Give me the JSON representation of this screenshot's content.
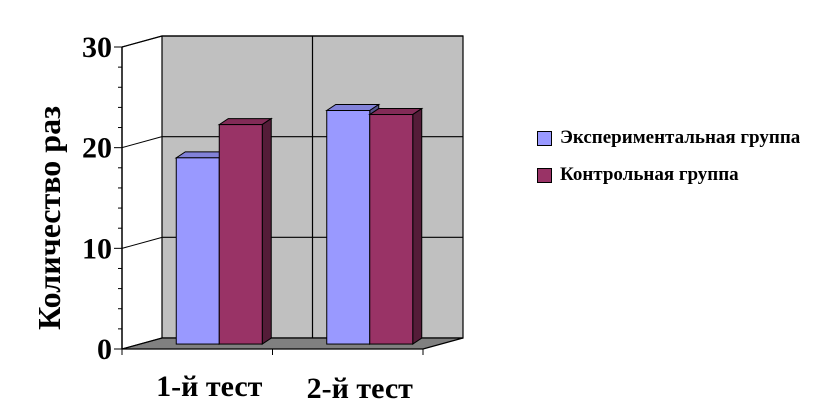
{
  "chart_data": {
    "type": "bar",
    "categories": [
      "1-й тест",
      "2-й тест"
    ],
    "series": [
      {
        "name": "Экспериментальная группа",
        "values": [
          18.5,
          23.2
        ],
        "color": "#9999ff"
      },
      {
        "name": "Контрольная группа",
        "values": [
          21.8,
          22.8
        ],
        "color": "#993366"
      }
    ],
    "ylabel": "Количество раз",
    "ylim": [
      0,
      30
    ],
    "yticks": [
      "0",
      "10",
      "20",
      "30"
    ],
    "grid": true,
    "legend_position": "right",
    "style": "3d"
  }
}
